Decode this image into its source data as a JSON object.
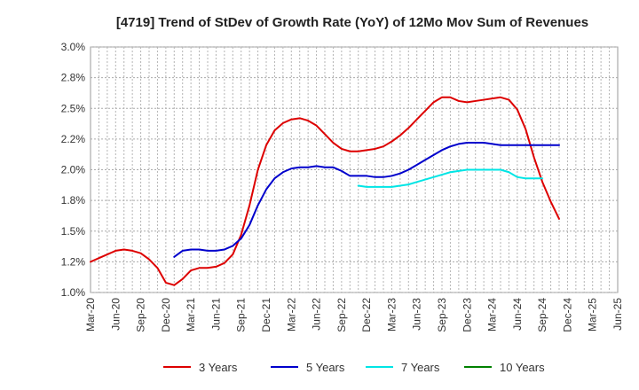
{
  "chart_data": {
    "type": "line",
    "title": "[4719]  Trend of StDev of Growth Rate (YoY) of 12Mo Mov Sum of Revenues",
    "xlabel": "",
    "ylabel": "",
    "ylim": [
      1.0,
      3.0
    ],
    "yticks": [
      "1.0%",
      "1.2%",
      "1.5%",
      "1.8%",
      "2.0%",
      "2.2%",
      "2.5%",
      "2.8%",
      "3.0%"
    ],
    "ytick_values": [
      1.0,
      1.25,
      1.5,
      1.75,
      2.0,
      2.25,
      2.5,
      2.75,
      3.0
    ],
    "xticks": [
      "Mar-20",
      "Jun-20",
      "Sep-20",
      "Dec-20",
      "Mar-21",
      "Jun-21",
      "Sep-21",
      "Dec-21",
      "Mar-22",
      "Jun-22",
      "Sep-22",
      "Dec-22",
      "Mar-23",
      "Jun-23",
      "Sep-23",
      "Dec-23",
      "Mar-24",
      "Jun-24",
      "Sep-24",
      "Dec-24",
      "Mar-25",
      "Jun-25"
    ],
    "grid": true,
    "legend_position": "bottom",
    "series": [
      {
        "name": "3 Years",
        "color": "#dd0000",
        "start_index": 0,
        "values": [
          1.25,
          1.28,
          1.31,
          1.34,
          1.35,
          1.34,
          1.32,
          1.27,
          1.2,
          1.08,
          1.06,
          1.11,
          1.18,
          1.2,
          1.2,
          1.21,
          1.24,
          1.31,
          1.47,
          1.71,
          2.0,
          2.2,
          2.32,
          2.38,
          2.41,
          2.42,
          2.4,
          2.36,
          2.29,
          2.22,
          2.17,
          2.15,
          2.15,
          2.16,
          2.17,
          2.19,
          2.23,
          2.28,
          2.34,
          2.41,
          2.48,
          2.55,
          2.59,
          2.59,
          2.56,
          2.55,
          2.56,
          2.57,
          2.58,
          2.59,
          2.57,
          2.49,
          2.33,
          2.1,
          1.9,
          1.74,
          1.6
        ]
      },
      {
        "name": "5 Years",
        "color": "#0000cc",
        "start_index": 10,
        "values": [
          1.29,
          1.34,
          1.35,
          1.35,
          1.34,
          1.34,
          1.35,
          1.38,
          1.44,
          1.55,
          1.71,
          1.84,
          1.93,
          1.98,
          2.01,
          2.02,
          2.02,
          2.03,
          2.02,
          2.02,
          1.99,
          1.95,
          1.95,
          1.95,
          1.94,
          1.94,
          1.95,
          1.97,
          2.0,
          2.04,
          2.08,
          2.12,
          2.16,
          2.19,
          2.21,
          2.22,
          2.22,
          2.22,
          2.21,
          2.2,
          2.2,
          2.2,
          2.2,
          2.2,
          2.2,
          2.2,
          2.2
        ]
      },
      {
        "name": "7 Years",
        "color": "#00e5e5",
        "start_index": 32,
        "values": [
          1.87,
          1.86,
          1.86,
          1.86,
          1.86,
          1.87,
          1.88,
          1.9,
          1.92,
          1.94,
          1.96,
          1.98,
          1.99,
          2.0,
          2.0,
          2.0,
          2.0,
          2.0,
          1.98,
          1.94,
          1.93,
          1.93,
          1.93
        ]
      },
      {
        "name": "10 Years",
        "color": "#008000",
        "start_index": 0,
        "values": []
      }
    ]
  }
}
